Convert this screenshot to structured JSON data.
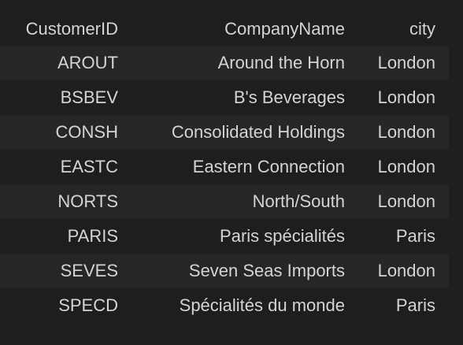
{
  "table": {
    "columns": [
      "CustomerID",
      "CompanyName",
      "city"
    ],
    "rows": [
      [
        "AROUT",
        "Around the Horn",
        "London"
      ],
      [
        "BSBEV",
        "B's Beverages",
        "London"
      ],
      [
        "CONSH",
        "Consolidated Holdings",
        "London"
      ],
      [
        "EASTC",
        "Eastern Connection",
        "London"
      ],
      [
        "NORTS",
        "North/South",
        "London"
      ],
      [
        "PARIS",
        "Paris spécialités",
        "Paris"
      ],
      [
        "SEVES",
        "Seven Seas Imports",
        "London"
      ],
      [
        "SPECD",
        "Spécialités du monde",
        "Paris"
      ]
    ]
  }
}
